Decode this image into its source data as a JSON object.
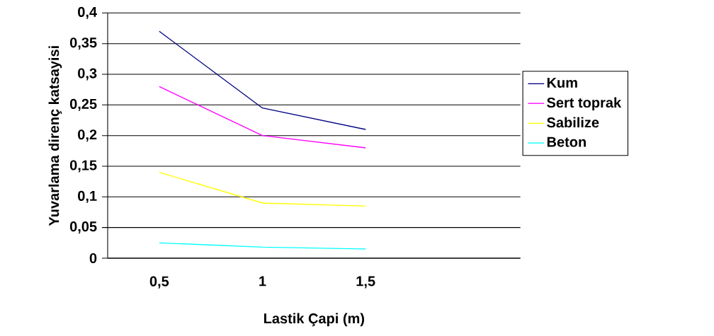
{
  "chart_data": {
    "type": "line",
    "xlabel": "Lastik Çapi (m)",
    "ylabel": "Yuvarlama direnç katsayisi",
    "categories": [
      "0,5",
      "1",
      "1,5",
      null
    ],
    "series": [
      {
        "name": "Kum",
        "color": "#000080",
        "values": [
          0.37,
          0.245,
          0.21,
          null
        ]
      },
      {
        "name": "Sert toprak",
        "color": "#ff00ff",
        "values": [
          0.28,
          0.2,
          0.18,
          null
        ]
      },
      {
        "name": "Sabilize",
        "color": "#ffff00",
        "values": [
          0.14,
          0.09,
          0.085,
          null
        ]
      },
      {
        "name": "Beton",
        "color": "#00ffff",
        "values": [
          0.025,
          0.018,
          0.015,
          null
        ]
      }
    ],
    "ylim": [
      0,
      0.4
    ],
    "yticks": [
      {
        "value": 0,
        "label": "0"
      },
      {
        "value": 0.05,
        "label": "0,05"
      },
      {
        "value": 0.1,
        "label": "0,1"
      },
      {
        "value": 0.15,
        "label": "0,15"
      },
      {
        "value": 0.2,
        "label": "0,2"
      },
      {
        "value": 0.25,
        "label": "0,25"
      },
      {
        "value": 0.3,
        "label": "0,3"
      },
      {
        "value": 0.35,
        "label": "0,35"
      },
      {
        "value": 0.4,
        "label": "0,4"
      }
    ],
    "grid": "y",
    "legend": "right",
    "marker": "none",
    "line_style": "solid"
  }
}
